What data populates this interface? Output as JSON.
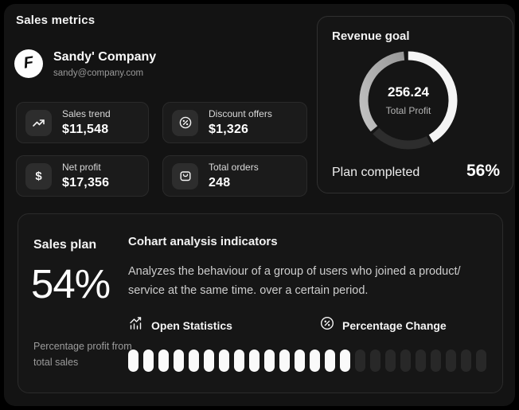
{
  "app": {
    "title": "Sales metrics"
  },
  "profile": {
    "name": "Sandy' Company",
    "email": "sandy@company.com",
    "logo_letter": "F"
  },
  "metrics": [
    {
      "label": "Sales trend",
      "value": "$11,548"
    },
    {
      "label": "Discount offers",
      "value": "$1,326"
    },
    {
      "label": "Net profit",
      "value": "$17,356",
      "icon_glyph": "$"
    },
    {
      "label": "Total orders",
      "value": "248"
    }
  ],
  "revenue_goal": {
    "title": "Revenue goal",
    "center_value": "256.24",
    "center_label": "Total Profit",
    "plan_label": "Plan completed",
    "plan_value": "56%",
    "donut": {
      "segments": [
        {
          "name": "completed",
          "start": 0,
          "size": 41.5,
          "color": "#f4f4f4"
        },
        {
          "name": "remaining-dark",
          "start": 42.5,
          "size": 20.5,
          "color": "#2d2d2d"
        },
        {
          "name": "remaining-gray",
          "start": 64,
          "size": 34.5,
          "color": "gray-gradient"
        }
      ]
    }
  },
  "sales_plan": {
    "title": "Sales plan",
    "value": "54%",
    "caption": "Percentage profit from total sales"
  },
  "cohort": {
    "title": "Cohart analysis indicators",
    "description": "Analyzes the behaviour of a group of users who joined a product/ service at the same time. over a certain period.",
    "open_statistics_label": "Open Statistics",
    "percentage_change_label": "Percentage Change",
    "progress": {
      "total": 24,
      "filled": 15,
      "filled_color": "#fafafa",
      "empty_color": "#282828"
    }
  }
}
